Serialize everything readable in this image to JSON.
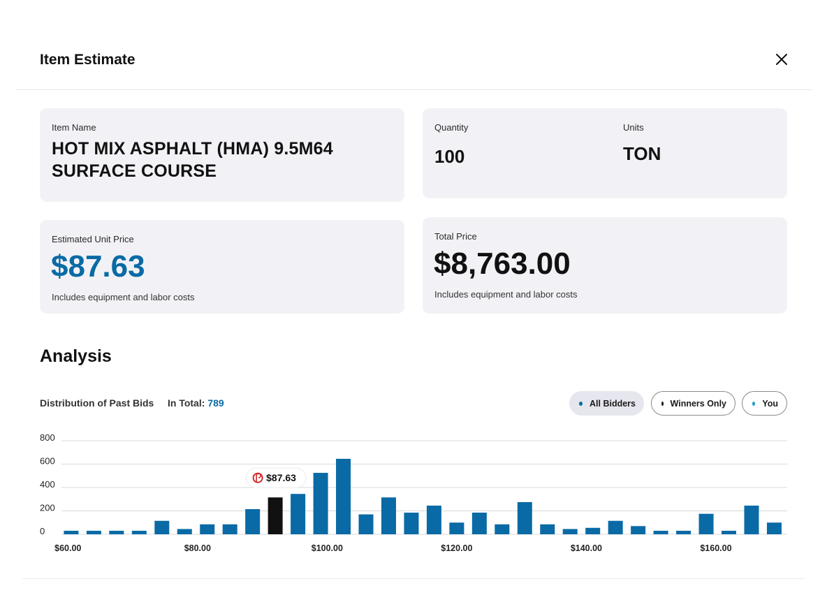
{
  "header": {
    "title": "Item Estimate"
  },
  "item": {
    "label": "Item Name",
    "value": "HOT MIX ASPHALT (HMA) 9.5M64 SURFACE COURSE"
  },
  "quantity": {
    "label": "Quantity",
    "value": "100"
  },
  "units": {
    "label": "Units",
    "value": "TON"
  },
  "unit_price": {
    "label": "Estimated Unit Price",
    "value": "$87.63",
    "note": "Includes equipment and labor costs"
  },
  "total_price": {
    "label": "Total Price",
    "value": "$8,763.00",
    "note": "Includes equipment and labor costs"
  },
  "analysis": {
    "title": "Analysis",
    "distribution_label": "Distribution of Past Bids",
    "total_label": "In Total:",
    "total_value": "789"
  },
  "filters": [
    {
      "label": "All Bidders",
      "dot": "#0a6aa5",
      "selected": true
    },
    {
      "label": "Winners Only",
      "dot": "#111111",
      "selected": false
    },
    {
      "label": "You",
      "dot": "#1aa3c7",
      "selected": false
    }
  ],
  "colors": {
    "accent": "#0a6aa5",
    "bar": "#0a6aa5",
    "highlight": "#111111",
    "tooltip_icon": "#d42a2a"
  },
  "chart_data": {
    "type": "bar",
    "y_ticks": [
      "800",
      "600",
      "400",
      "200",
      "0"
    ],
    "x_tick_labels": [
      "$60.00",
      "$80.00",
      "$100.00",
      "$120.00",
      "$140.00",
      "$160.00"
    ],
    "x_tick_values": [
      60,
      80,
      100,
      120,
      140,
      160
    ],
    "ylim": [
      0,
      800
    ],
    "xlim": [
      59,
      171
    ],
    "bars": [
      {
        "x": 60.5,
        "value": 30
      },
      {
        "x": 64.0,
        "value": 30
      },
      {
        "x": 67.5,
        "value": 30
      },
      {
        "x": 71.0,
        "value": 30
      },
      {
        "x": 74.5,
        "value": 115
      },
      {
        "x": 78.0,
        "value": 45
      },
      {
        "x": 81.5,
        "value": 85
      },
      {
        "x": 85.0,
        "value": 85
      },
      {
        "x": 88.5,
        "value": 215
      },
      {
        "x": 92.0,
        "value": 315,
        "highlight": true
      },
      {
        "x": 95.5,
        "value": 345
      },
      {
        "x": 99.0,
        "value": 525
      },
      {
        "x": 102.5,
        "value": 645
      },
      {
        "x": 106.0,
        "value": 170
      },
      {
        "x": 109.5,
        "value": 315
      },
      {
        "x": 113.0,
        "value": 185
      },
      {
        "x": 116.5,
        "value": 245
      },
      {
        "x": 120.0,
        "value": 100
      },
      {
        "x": 123.5,
        "value": 185
      },
      {
        "x": 127.0,
        "value": 85
      },
      {
        "x": 130.5,
        "value": 275
      },
      {
        "x": 134.0,
        "value": 85
      },
      {
        "x": 137.5,
        "value": 45
      },
      {
        "x": 141.0,
        "value": 55
      },
      {
        "x": 144.5,
        "value": 115
      },
      {
        "x": 148.0,
        "value": 70
      },
      {
        "x": 151.5,
        "value": 30
      },
      {
        "x": 155.0,
        "value": 30
      },
      {
        "x": 158.5,
        "value": 175
      },
      {
        "x": 162.0,
        "value": 30
      },
      {
        "x": 165.5,
        "value": 245
      },
      {
        "x": 169.0,
        "value": 100
      }
    ],
    "tooltip": {
      "value": "$87.63"
    }
  }
}
